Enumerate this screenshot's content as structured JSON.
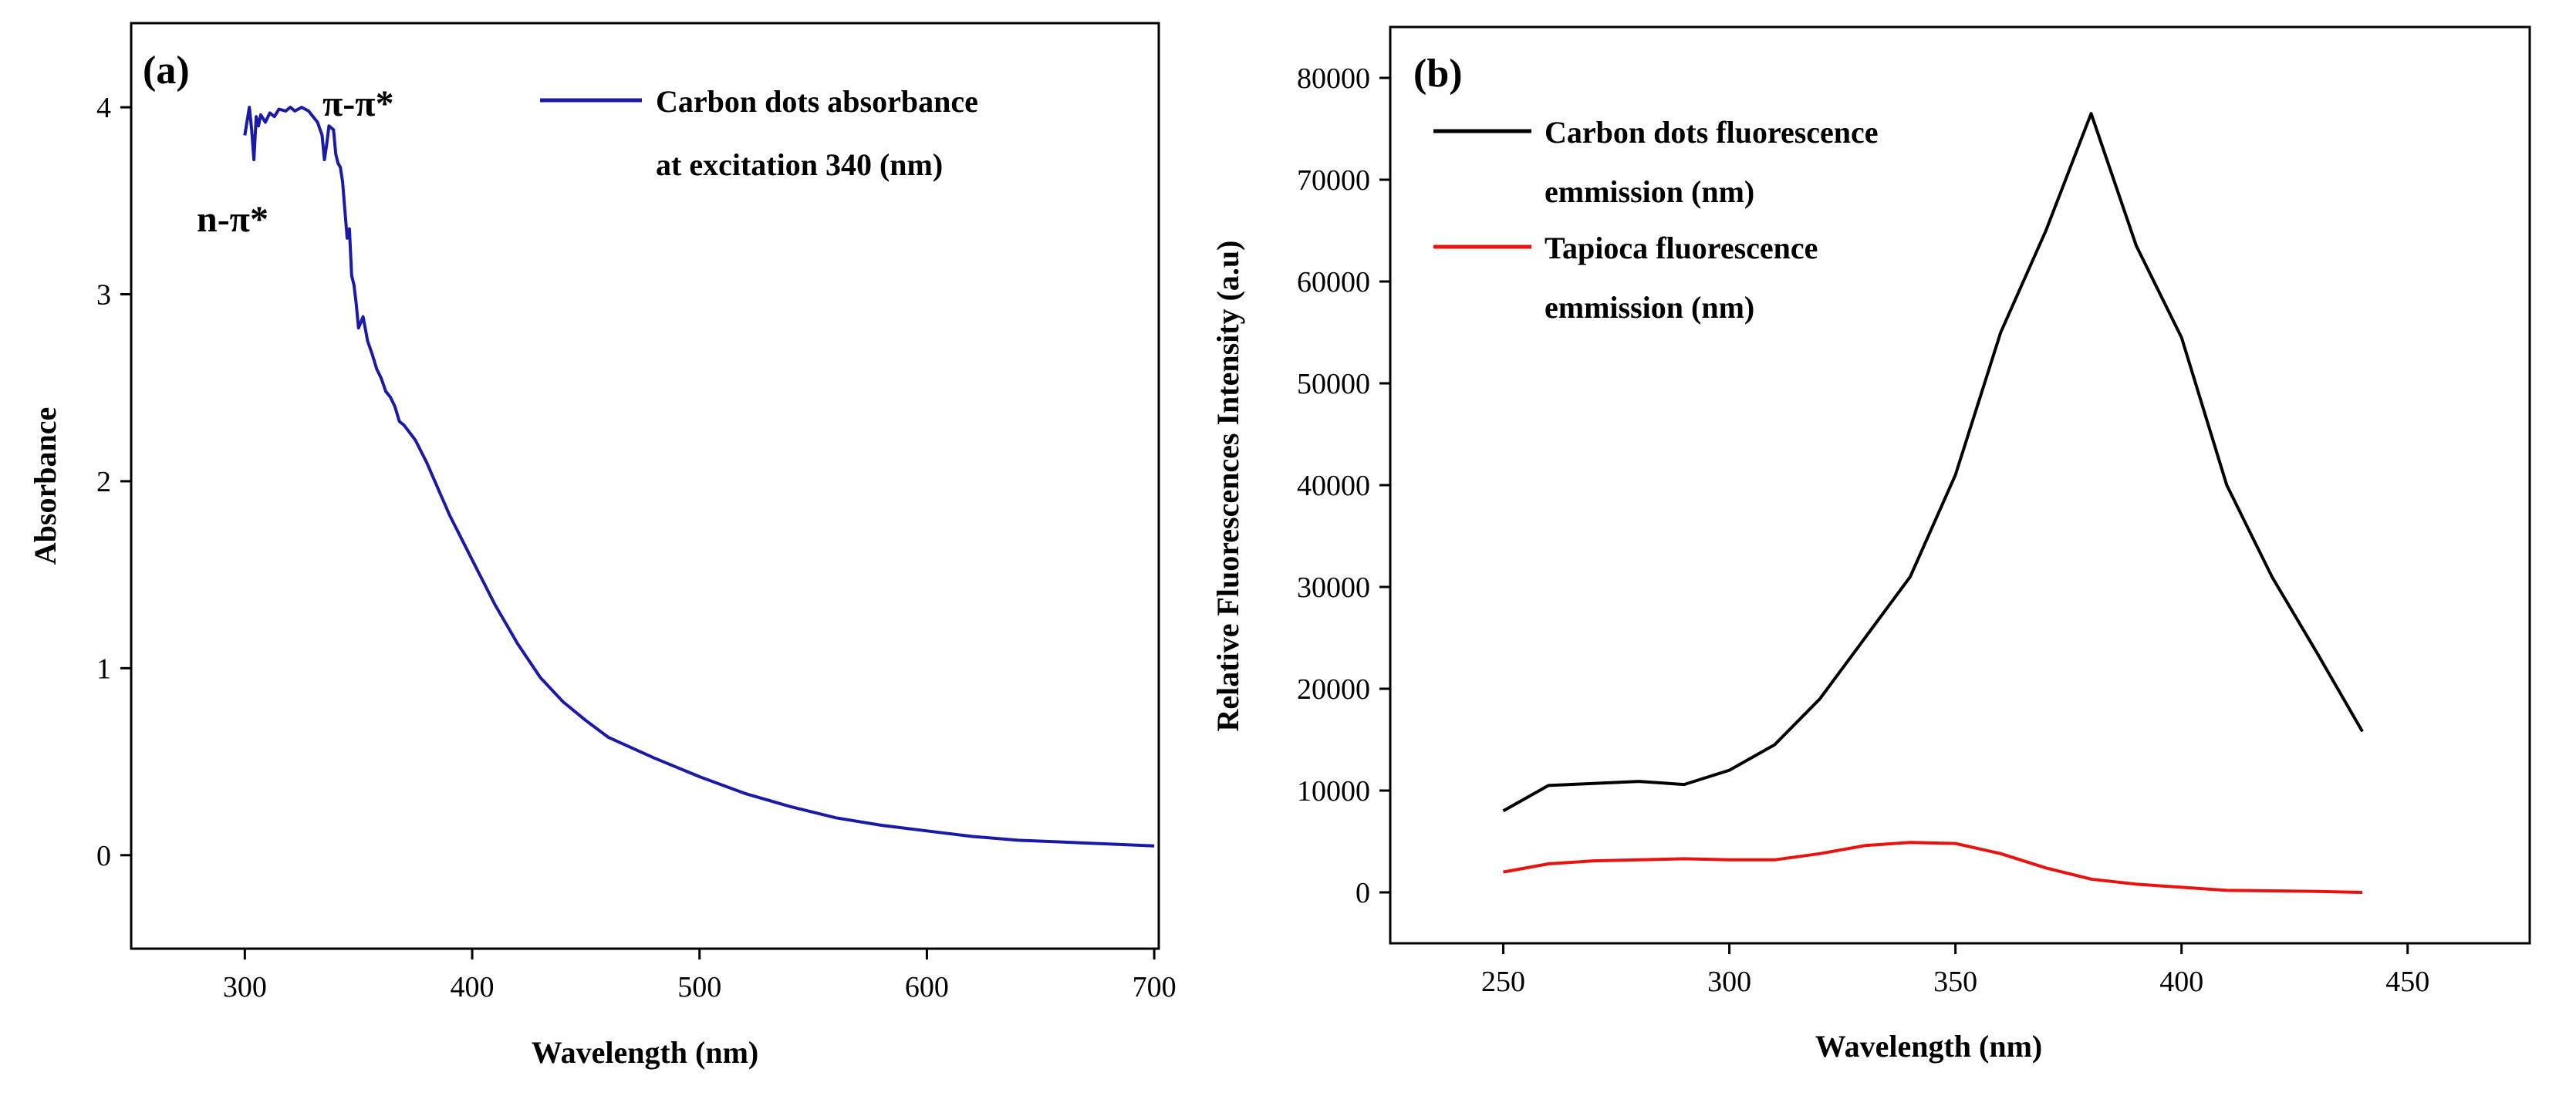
{
  "chart_data": [
    {
      "type": "line",
      "panel_label": "(a)",
      "title": "",
      "xlabel": "Wavelength (nm)",
      "ylabel": "Absorbance",
      "xlim": [
        250,
        702
      ],
      "ylim": [
        -0.5,
        4.45
      ],
      "xticks": [
        300,
        400,
        500,
        600,
        700
      ],
      "yticks": [
        0,
        1,
        2,
        3,
        4
      ],
      "xtick_labels": [
        "300",
        "400",
        "500",
        "600",
        "700"
      ],
      "ytick_labels": [
        "0",
        "1",
        "2",
        "3",
        "4"
      ],
      "legend_position": "top-right",
      "annotations": [
        {
          "text": "n-π*",
          "x": 301,
          "y": 3.55
        },
        {
          "text": "π-π*",
          "x": 334,
          "y": 4.08
        }
      ],
      "series": [
        {
          "name": "Carbon dots absorbance at excitation 340 (nm)",
          "legend_lines": [
            "Carbon dots absorbance",
            "at excitation 340 (nm)"
          ],
          "color": "#1a1aa6",
          "x": [
            300,
            302,
            303,
            304,
            305,
            306,
            307,
            309,
            311,
            313,
            315,
            318,
            320,
            322,
            325,
            328,
            330,
            332,
            334,
            335,
            336,
            337,
            338,
            339,
            340,
            341,
            342,
            343,
            344,
            345,
            346,
            347,
            348,
            349,
            350,
            352,
            354,
            356,
            358,
            360,
            362,
            364,
            366,
            368,
            370,
            375,
            380,
            385,
            390,
            395,
            400,
            410,
            420,
            430,
            440,
            450,
            460,
            480,
            500,
            520,
            540,
            560,
            580,
            600,
            620,
            640,
            660,
            680,
            700
          ],
          "y": [
            3.85,
            4.0,
            3.88,
            3.72,
            3.95,
            3.9,
            3.96,
            3.92,
            3.97,
            3.95,
            3.99,
            3.98,
            4.0,
            3.98,
            4.0,
            3.98,
            3.95,
            3.92,
            3.85,
            3.72,
            3.8,
            3.9,
            3.89,
            3.88,
            3.75,
            3.7,
            3.68,
            3.6,
            3.45,
            3.3,
            3.35,
            3.1,
            3.05,
            2.95,
            2.82,
            2.88,
            2.75,
            2.68,
            2.6,
            2.55,
            2.48,
            2.45,
            2.4,
            2.32,
            2.3,
            2.22,
            2.1,
            1.96,
            1.82,
            1.7,
            1.58,
            1.34,
            1.13,
            0.95,
            0.82,
            0.72,
            0.63,
            0.52,
            0.42,
            0.33,
            0.26,
            0.2,
            0.16,
            0.13,
            0.1,
            0.08,
            0.07,
            0.06,
            0.05
          ]
        }
      ]
    },
    {
      "type": "line",
      "panel_label": "(b)",
      "title": "",
      "xlabel": "Wavelength (nm)",
      "ylabel": "Relative Fluorescences Intensity (a.u)",
      "xlim": [
        225,
        477
      ],
      "ylim": [
        -5000,
        85000
      ],
      "xticks": [
        250,
        300,
        350,
        400,
        450
      ],
      "yticks": [
        0,
        10000,
        20000,
        30000,
        40000,
        50000,
        60000,
        70000,
        80000
      ],
      "xtick_labels": [
        "250",
        "300",
        "350",
        "400",
        "450"
      ],
      "ytick_labels": [
        "0",
        "10000",
        "20000",
        "30000",
        "40000",
        "50000",
        "60000",
        "70000",
        "80000"
      ],
      "legend_position": "top-left",
      "series": [
        {
          "name": "Carbon dots fluorescence emmission (nm)",
          "legend_lines": [
            "Carbon dots fluorescence",
            "emmission (nm)"
          ],
          "color": "#000000",
          "x": [
            250,
            260,
            270,
            280,
            290,
            300,
            310,
            320,
            330,
            340,
            350,
            360,
            370,
            380,
            390,
            400,
            410,
            420,
            430,
            440
          ],
          "y": [
            8000,
            10500,
            10700,
            10900,
            10600,
            12000,
            14500,
            19000,
            25000,
            31000,
            41000,
            55000,
            65000,
            76500,
            63500,
            54500,
            40000,
            31000,
            23500,
            15800
          ]
        },
        {
          "name": "Tapioca fluorescence emmission (nm)",
          "legend_lines": [
            "Tapioca fluorescence",
            "emmission (nm)"
          ],
          "color": "#e8130e",
          "x": [
            250,
            260,
            270,
            280,
            290,
            300,
            310,
            320,
            330,
            340,
            350,
            360,
            370,
            380,
            390,
            400,
            410,
            420,
            430,
            440
          ],
          "y": [
            2000,
            2800,
            3100,
            3200,
            3300,
            3200,
            3200,
            3800,
            4600,
            4900,
            4800,
            3800,
            2400,
            1300,
            800,
            500,
            200,
            150,
            100,
            0
          ]
        }
      ]
    }
  ]
}
